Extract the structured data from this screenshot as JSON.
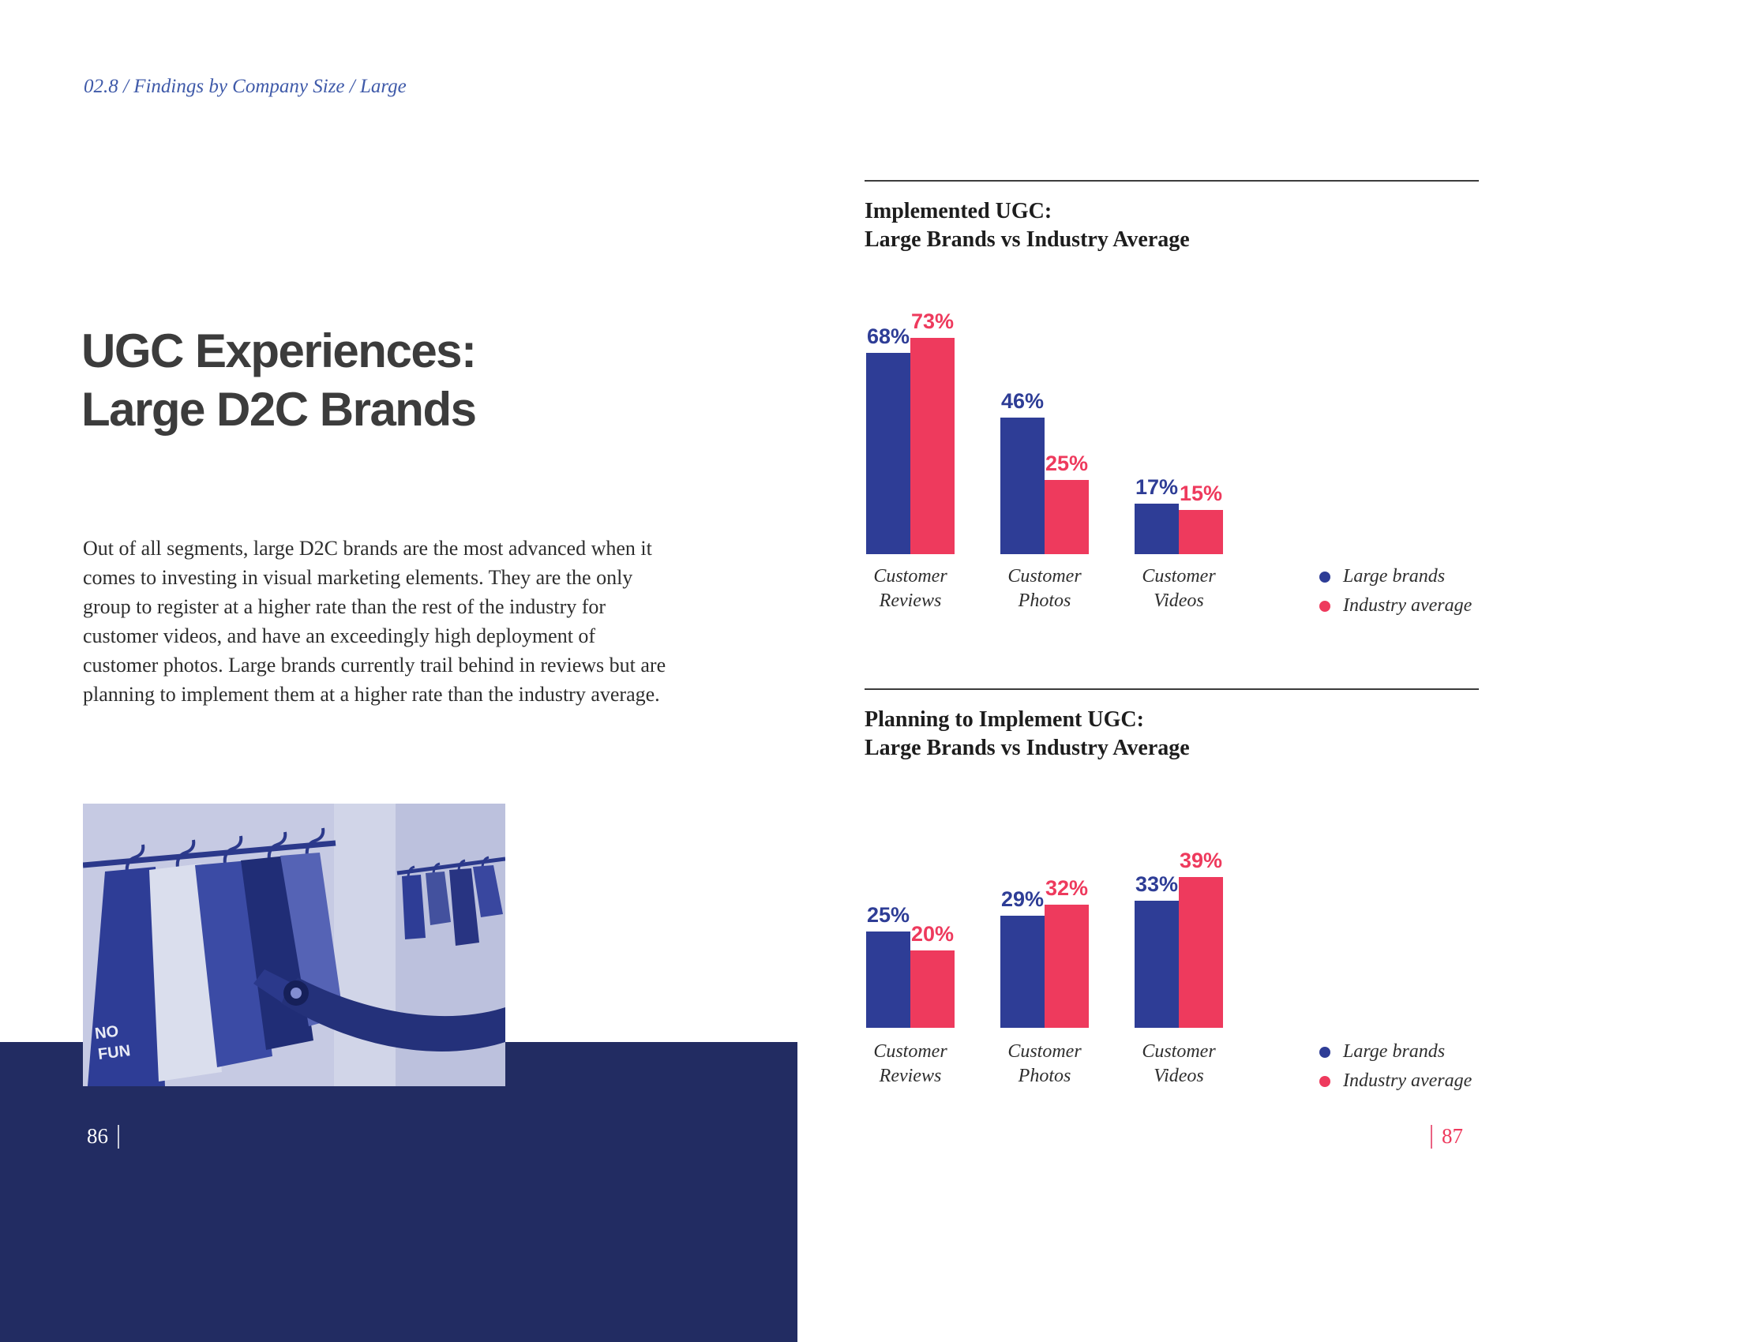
{
  "page": {
    "breadcrumb": "02.8 / Findings by Company Size / Large",
    "left_page_number": "86",
    "right_page_number": "87"
  },
  "article": {
    "title_line1": "UGC Experiences:",
    "title_line2": "Large D2C Brands",
    "body": "Out of all segments, large D2C brands are the most advanced when it comes to investing in visual marketing elements. They are the only group to register at a higher rate than the rest of the industry for customer videos, and have an exceedingly high deployment of customer photos. Large brands currently trail behind in reviews but are planning to implement them at a higher rate than the industry average."
  },
  "image": {
    "overlay_line1": "NO",
    "overlay_line2": "FUN"
  },
  "colors": {
    "large_brands": "#2e3d96",
    "industry_average": "#ee3a5d",
    "navy_band": "#222c62",
    "accent_blue": "#3f5aa9"
  },
  "chart_data": [
    {
      "type": "bar",
      "title_line1": "Implemented UGC:",
      "title_line2": "Large Brands vs Industry Average",
      "categories": [
        "Customer Reviews",
        "Customer Photos",
        "Customer Videos"
      ],
      "series": [
        {
          "name": "Large brands",
          "color": "#2e3d96",
          "values": [
            68,
            46,
            17
          ]
        },
        {
          "name": "Industry average",
          "color": "#ee3a5d",
          "values": [
            73,
            25,
            15
          ]
        }
      ],
      "value_suffix": "%",
      "ylim": [
        0,
        80
      ],
      "grid": false,
      "legend_position": "right"
    },
    {
      "type": "bar",
      "title_line1": "Planning to Implement UGC:",
      "title_line2": "Large Brands vs Industry Average",
      "categories": [
        "Customer Reviews",
        "Customer Photos",
        "Customer Videos"
      ],
      "series": [
        {
          "name": "Large brands",
          "color": "#2e3d96",
          "values": [
            25,
            29,
            33
          ]
        },
        {
          "name": "Industry average",
          "color": "#ee3a5d",
          "values": [
            20,
            32,
            39
          ]
        }
      ],
      "value_suffix": "%",
      "ylim": [
        0,
        45
      ],
      "grid": false,
      "legend_position": "right"
    }
  ]
}
